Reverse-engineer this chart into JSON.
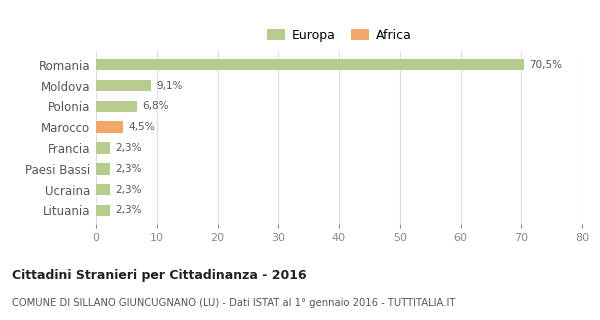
{
  "categories": [
    "Romania",
    "Moldova",
    "Polonia",
    "Marocco",
    "Francia",
    "Paesi Bassi",
    "Ucraina",
    "Lituania"
  ],
  "values": [
    70.5,
    9.1,
    6.8,
    4.5,
    2.3,
    2.3,
    2.3,
    2.3
  ],
  "labels": [
    "70,5%",
    "9,1%",
    "6,8%",
    "4,5%",
    "2,3%",
    "2,3%",
    "2,3%",
    "2,3%"
  ],
  "colors": [
    "#b5cc8e",
    "#b5cc8e",
    "#b5cc8e",
    "#f0a868",
    "#b5cc8e",
    "#b5cc8e",
    "#b5cc8e",
    "#b5cc8e"
  ],
  "legend_items": [
    {
      "label": "Europa",
      "color": "#b5cc8e"
    },
    {
      "label": "Africa",
      "color": "#f0a868"
    }
  ],
  "xlim": [
    0,
    80
  ],
  "xticks": [
    0,
    10,
    20,
    30,
    40,
    50,
    60,
    70,
    80
  ],
  "title": "Cittadini Stranieri per Cittadinanza - 2016",
  "subtitle": "COMUNE DI SILLANO GIUNCUGNANO (LU) - Dati ISTAT al 1° gennaio 2016 - TUTTITALIA.IT",
  "background_color": "#ffffff",
  "grid_color": "#dddddd",
  "bar_height": 0.55
}
